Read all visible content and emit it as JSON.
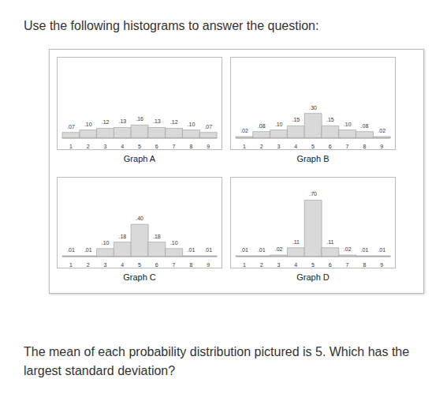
{
  "header": "Use the following histograms to answer the question:",
  "question": "The mean of each probability distribution pictured is 5. Which has the largest standard deviation?",
  "chart_data": [
    {
      "type": "bar",
      "title": "Graph A",
      "categories": [
        "1",
        "2",
        "3",
        "4",
        "5",
        "6",
        "7",
        "8",
        "9"
      ],
      "values": [
        0.07,
        0.1,
        0.12,
        0.13,
        0.16,
        0.13,
        0.12,
        0.1,
        0.07
      ],
      "value_labels": [
        ".07",
        ".10",
        ".12",
        ".13",
        ".16",
        ".13",
        ".12",
        ".10",
        ".07"
      ],
      "color": "#d9d9d9",
      "ylim": [
        0,
        0.9
      ],
      "data_labels": true,
      "tick_labels": "x",
      "grid": false
    },
    {
      "type": "bar",
      "title": "Graph B",
      "categories": [
        "1",
        "2",
        "3",
        "4",
        "5",
        "6",
        "7",
        "8",
        "9"
      ],
      "values": [
        0.02,
        0.08,
        0.1,
        0.15,
        0.3,
        0.15,
        0.1,
        0.08,
        0.02
      ],
      "value_labels": [
        ".02",
        ".08",
        ".10",
        ".15",
        ".30",
        ".15",
        ".10",
        ".08",
        ".02"
      ],
      "color": "#d9d9d9",
      "ylim": [
        0,
        0.9
      ],
      "data_labels": true,
      "tick_labels": "x",
      "grid": false
    },
    {
      "type": "bar",
      "title": "Graph C",
      "categories": [
        "1",
        "2",
        "3",
        "4",
        "5",
        "6",
        "7",
        "8",
        "9"
      ],
      "values": [
        0.01,
        0.01,
        0.1,
        0.18,
        0.4,
        0.18,
        0.1,
        0.01,
        0.01
      ],
      "value_labels": [
        ".01",
        ".01",
        ".10",
        ".18",
        ".40",
        ".18",
        ".10",
        ".01",
        ".01"
      ],
      "color": "#d9d9d9",
      "ylim": [
        0,
        0.9
      ],
      "data_labels": true,
      "tick_labels": "x",
      "grid": false
    },
    {
      "type": "bar",
      "title": "Graph D",
      "categories": [
        "1",
        "2",
        "3",
        "4",
        "5",
        "6",
        "7",
        "8",
        "9"
      ],
      "values": [
        0.01,
        0.01,
        0.02,
        0.11,
        0.7,
        0.11,
        0.02,
        0.01,
        0.01
      ],
      "value_labels": [
        ".01",
        ".01",
        ".02",
        ".11",
        ".70",
        ".11",
        ".02",
        ".01",
        ".01"
      ],
      "color": "#d9d9d9",
      "ylim": [
        0,
        0.9
      ],
      "data_labels": true,
      "tick_labels": "x",
      "grid": false
    }
  ]
}
